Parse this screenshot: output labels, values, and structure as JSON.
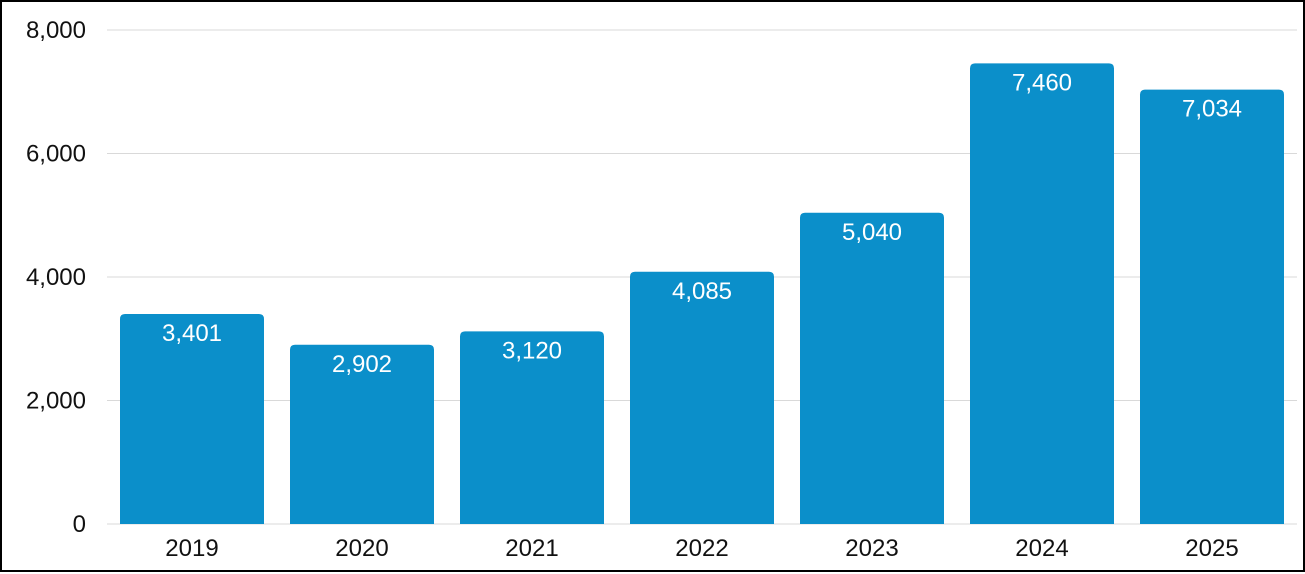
{
  "chart_data": {
    "type": "bar",
    "categories": [
      "2019",
      "2020",
      "2021",
      "2022",
      "2023",
      "2024",
      "2025"
    ],
    "values": [
      3401,
      2902,
      3120,
      4085,
      5040,
      7460,
      7034
    ],
    "value_labels": [
      "3,401",
      "2,902",
      "3,120",
      "4,085",
      "5,040",
      "7,460",
      "7,034"
    ],
    "y_ticks": [
      0,
      2000,
      4000,
      6000,
      8000
    ],
    "y_tick_labels": [
      "0",
      "2,000",
      "4,000",
      "6,000",
      "8,000"
    ],
    "ylim": [
      0,
      8000
    ],
    "grid": true,
    "legend": "none",
    "title": "",
    "xlabel": "",
    "ylabel": "",
    "colors": {
      "bar": "#0b8fca",
      "grid": "#d9d9d9",
      "text": "#111111",
      "label": "#ffffff"
    }
  }
}
